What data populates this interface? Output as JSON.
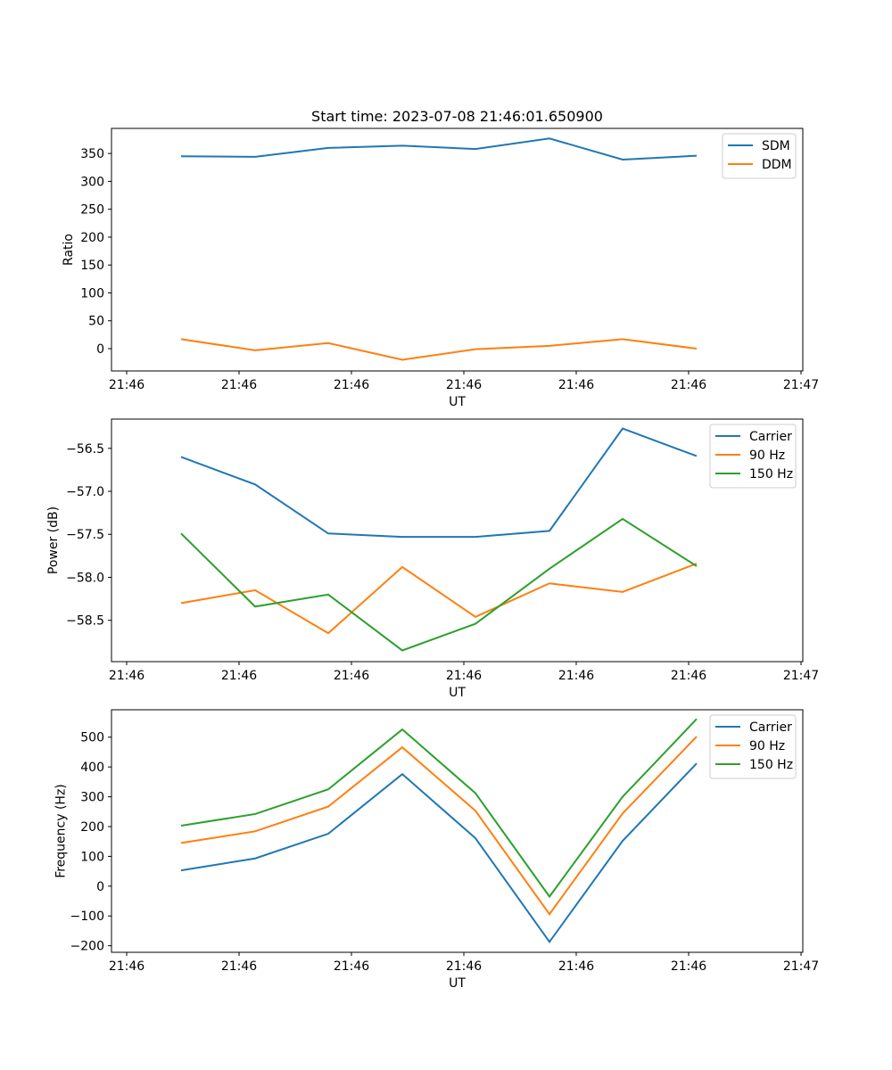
{
  "chart_data": [
    {
      "type": "line",
      "title": "Start time: 2023-07-08 21:46:01.650900",
      "xlabel": "UT",
      "ylabel": "Ratio",
      "x_tick_labels": [
        "21:46",
        "21:46",
        "21:46",
        "21:46",
        "21:46",
        "21:46",
        "21:47"
      ],
      "ylim": [
        -40,
        395
      ],
      "yticks": [
        0,
        50,
        100,
        150,
        200,
        250,
        300,
        350
      ],
      "legend_position": "top-right",
      "series": [
        {
          "name": "SDM",
          "color": "#1f77b4",
          "values": [
            345,
            344,
            360,
            364,
            358,
            377,
            339,
            346
          ]
        },
        {
          "name": "DDM",
          "color": "#ff7f0e",
          "values": [
            17,
            -3,
            10,
            -20,
            -1,
            5,
            17,
            0
          ]
        }
      ]
    },
    {
      "type": "line",
      "title": "",
      "xlabel": "UT",
      "ylabel": "Power (dB)",
      "x_tick_labels": [
        "21:46",
        "21:46",
        "21:46",
        "21:46",
        "21:46",
        "21:46",
        "21:47"
      ],
      "ylim": [
        -58.98,
        -56.16
      ],
      "yticks": [
        -56.5,
        -57.0,
        -57.5,
        -58.0,
        -58.5
      ],
      "ytick_labels": [
        "−56.5",
        "−57.0",
        "−57.5",
        "−58.0",
        "−58.5"
      ],
      "legend_position": "top-right",
      "series": [
        {
          "name": "Carrier",
          "color": "#1f77b4",
          "values": [
            -56.6,
            -56.92,
            -57.49,
            -57.53,
            -57.53,
            -57.46,
            -56.27,
            -56.59
          ]
        },
        {
          "name": "90 Hz",
          "color": "#ff7f0e",
          "values": [
            -58.3,
            -58.15,
            -58.65,
            -57.88,
            -58.46,
            -58.07,
            -58.17,
            -57.84
          ]
        },
        {
          "name": "150 Hz",
          "color": "#2ca02c",
          "values": [
            -57.49,
            -58.34,
            -58.2,
            -58.85,
            -58.54,
            -57.9,
            -57.32,
            -57.87
          ]
        }
      ]
    },
    {
      "type": "line",
      "title": "",
      "xlabel": "UT",
      "ylabel": "Frequency (Hz)",
      "x_tick_labels": [
        "21:46",
        "21:46",
        "21:46",
        "21:46",
        "21:46",
        "21:46",
        "21:47"
      ],
      "ylim": [
        -222,
        592
      ],
      "yticks": [
        -200,
        -100,
        0,
        100,
        200,
        300,
        400,
        500
      ],
      "ytick_labels": [
        "−200",
        "−100",
        "0",
        "100",
        "200",
        "300",
        "400",
        "500"
      ],
      "legend_position": "top-right",
      "series": [
        {
          "name": "Carrier",
          "color": "#1f77b4",
          "values": [
            53,
            93,
            176,
            376,
            161,
            -187,
            152,
            412
          ]
        },
        {
          "name": "90 Hz",
          "color": "#ff7f0e",
          "values": [
            145,
            184,
            267,
            466,
            253,
            -94,
            244,
            502
          ]
        },
        {
          "name": "150 Hz",
          "color": "#2ca02c",
          "values": [
            203,
            242,
            325,
            526,
            312,
            -35,
            300,
            561
          ]
        }
      ]
    }
  ]
}
